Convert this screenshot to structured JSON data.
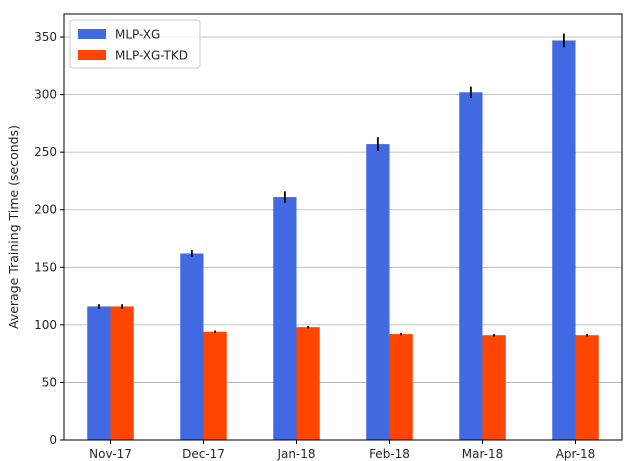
{
  "chart_data": {
    "type": "bar",
    "title": "",
    "xlabel": "",
    "ylabel": "Average Training Time (seconds)",
    "categories": [
      "Nov-17",
      "Dec-17",
      "Jan-18",
      "Feb-18",
      "Mar-18",
      "Apr-18"
    ],
    "ylim": [
      0,
      370
    ],
    "yticks": [
      0,
      50,
      100,
      150,
      200,
      250,
      300,
      350
    ],
    "grid": "horizontal",
    "legend_position": "top-left",
    "series": [
      {
        "name": "MLP-XG",
        "color": "#4169e1",
        "values": [
          116,
          162,
          211,
          257,
          302,
          347
        ],
        "errors": [
          2,
          3,
          5,
          6,
          5,
          6
        ]
      },
      {
        "name": "MLP-XG-TKD",
        "color": "#ff4500",
        "values": [
          116,
          94,
          98,
          92,
          91,
          91
        ],
        "errors": [
          2,
          1,
          1,
          1,
          1,
          1
        ]
      }
    ]
  }
}
